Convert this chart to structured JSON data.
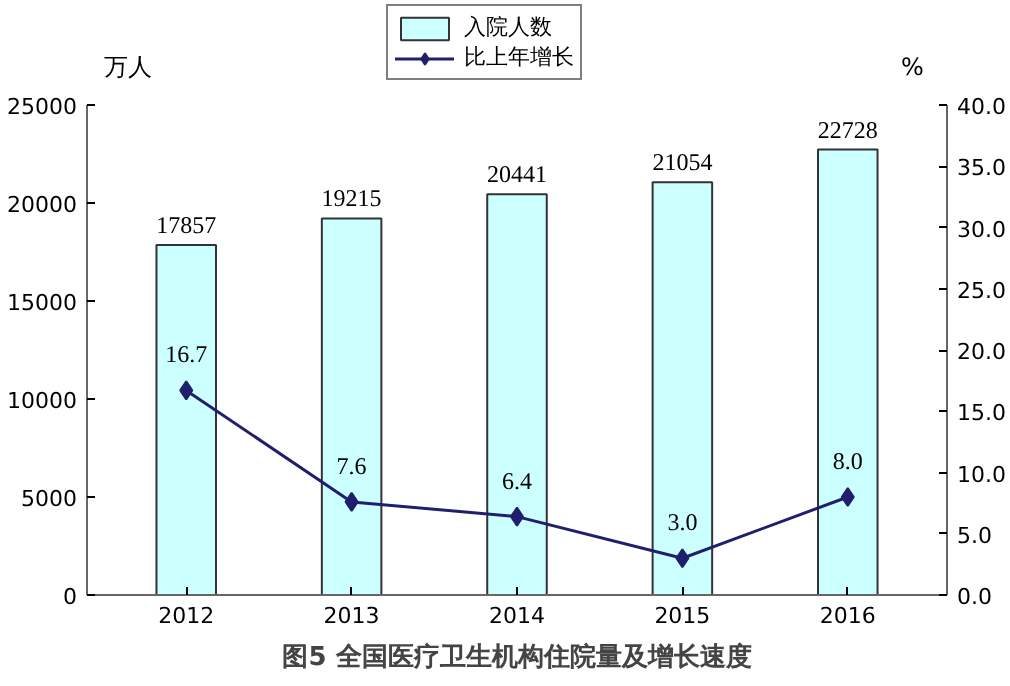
{
  "chart_data": {
    "type": "bar",
    "title": "图5 全国医疗卫生机构住院量及增长速度",
    "ylabel": "万人",
    "y2label": "%",
    "categories": [
      "2012",
      "2013",
      "2014",
      "2015",
      "2016"
    ],
    "series": [
      {
        "name": "入院人数",
        "color": "#ccffff",
        "values": [
          17857,
          19215,
          20441,
          21054,
          22728
        ]
      },
      {
        "name": "比上年增长",
        "type": "line",
        "axis": "y2",
        "color": "#1f1f6e",
        "marker": "diamond",
        "values": [
          16.7,
          7.6,
          6.4,
          3.0,
          8.0
        ],
        "value_labels": [
          "16.7",
          "7.6",
          "6.4",
          "3.0",
          "8.0"
        ]
      }
    ],
    "data_labels": true,
    "ylim": [
      0,
      25000
    ],
    "yticks": [
      0,
      5000,
      10000,
      15000,
      20000,
      25000
    ],
    "y2lim": [
      0,
      40
    ],
    "y2ticks": [
      {
        "value": 0,
        "label": "0.0"
      },
      {
        "value": 5,
        "label": "5.0"
      },
      {
        "value": 10,
        "label": "10.0"
      },
      {
        "value": 15,
        "label": "15.0"
      },
      {
        "value": 20,
        "label": "20.0"
      },
      {
        "value": 25,
        "label": "25.0"
      },
      {
        "value": 30,
        "label": "30.0"
      },
      {
        "value": 35,
        "label": "35.0"
      },
      {
        "value": 40,
        "label": "40.0"
      }
    ],
    "grid": false,
    "legend": "top"
  }
}
